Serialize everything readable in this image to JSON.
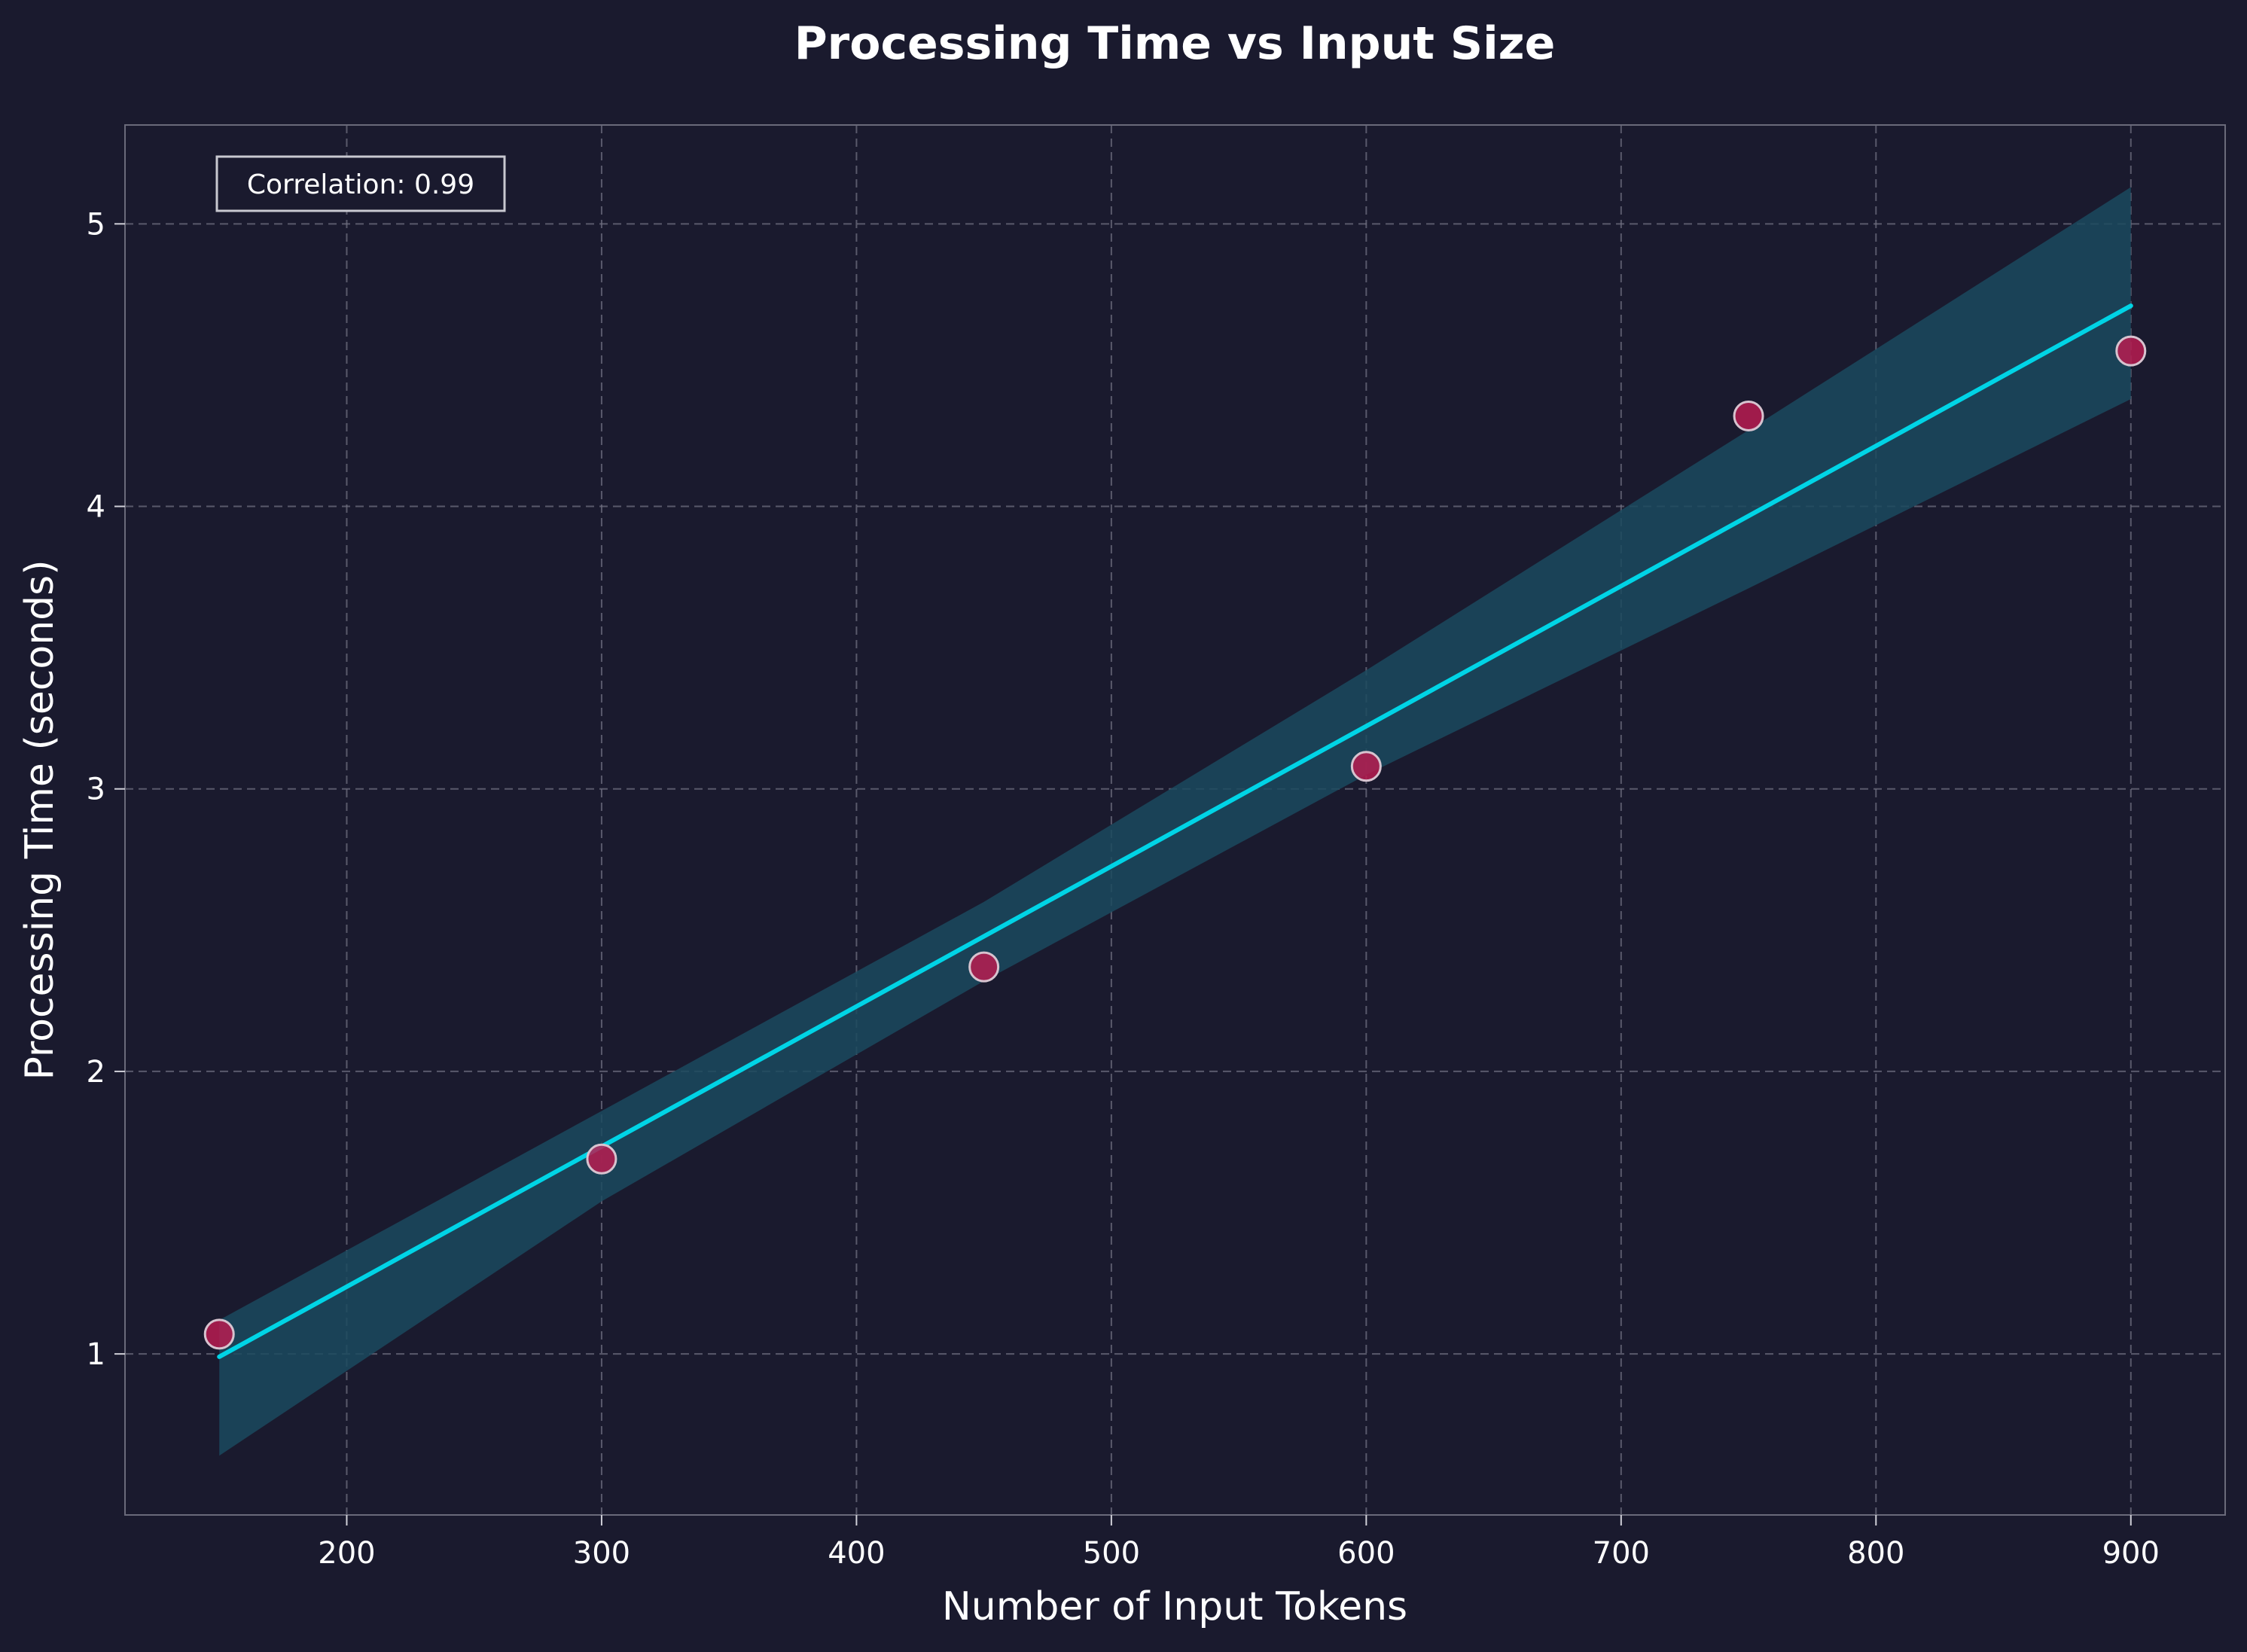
{
  "chart_data": {
    "type": "scatter",
    "title": "Processing Time vs Input Size",
    "xlabel": "Number of Input Tokens",
    "ylabel": "Processing Time (seconds)",
    "xlim": [
      113,
      937
    ],
    "ylim": [
      0.43,
      5.35
    ],
    "xticks": [
      200,
      300,
      400,
      500,
      600,
      700,
      800,
      900
    ],
    "yticks": [
      1,
      2,
      3,
      4,
      5
    ],
    "grid": true,
    "annotation": "Correlation: 0.99",
    "points": {
      "x": [
        150,
        300,
        450,
        600,
        750,
        900
      ],
      "y": [
        1.07,
        1.69,
        2.37,
        3.08,
        4.32,
        4.55
      ]
    },
    "fit_line": {
      "x": [
        150,
        900
      ],
      "y": [
        0.99,
        4.71
      ]
    },
    "confidence_band": {
      "x": [
        150,
        300,
        450,
        600,
        750,
        900
      ],
      "upper": [
        1.12,
        1.86,
        2.6,
        3.42,
        4.27,
        5.13
      ],
      "lower": [
        0.64,
        1.54,
        2.32,
        3.05,
        3.71,
        4.38
      ]
    },
    "colors": {
      "background": "#1a1a2e",
      "line": "#00d4e6",
      "band": "#1b4a5e",
      "marker_fill": "#b81c50",
      "marker_edge": "#d7c3cf",
      "annotation_border": "#c8c8d0"
    }
  }
}
